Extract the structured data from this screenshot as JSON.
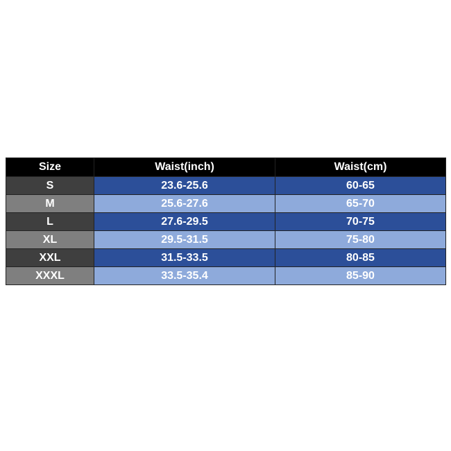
{
  "table": {
    "header": [
      "Size",
      "Waist(inch)",
      "Waist(cm)"
    ],
    "rows": [
      [
        "S",
        "23.6-25.6",
        "60-65"
      ],
      [
        "M",
        "25.6-27.6",
        "65-70"
      ],
      [
        "L",
        "27.6-29.5",
        "70-75"
      ],
      [
        "XL",
        "29.5-31.5",
        "75-80"
      ],
      [
        "XXL",
        "31.5-33.5",
        "80-85"
      ],
      [
        "XXXL",
        "33.5-35.4",
        "85-90"
      ]
    ]
  }
}
